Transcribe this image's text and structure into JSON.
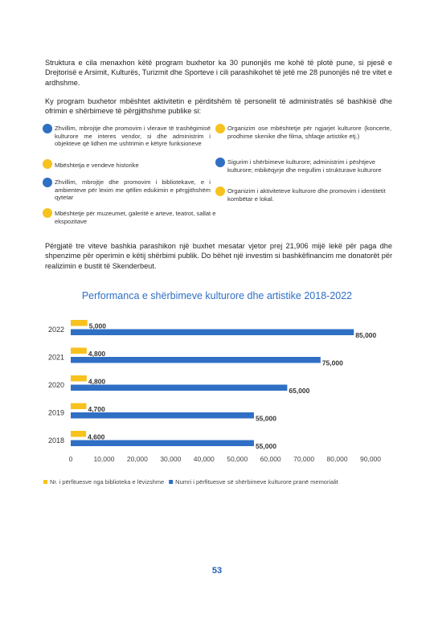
{
  "intro": {
    "paragraph1": "Struktura e cila menaxhon këtë program buxhetor ka 30 punonjës me kohë të plotë pune, si pjesë e Drejtorisë e Arsimit, Kulturës, Turizmit dhe Sporteve i cili parashikohet të jetë me 28 punonjës në tre vitet e ardhshme.",
    "paragraph2": "Ky program buxhetor mbështet aktivitetin e përditshëm të personelit të administratës së bashkisë dhe ofrimin e shërbimeve të përgjithshme publike si:"
  },
  "services": {
    "left": [
      {
        "text": "Zhvillim, mbrojtje dhe promovim i vlerave të trashëgimisë kulturore me interes vendor, si dhe administrim i objekteve që lidhen me ushtrimin e këtyre funksioneve",
        "color": "#2f6fc4"
      },
      {
        "text": "Mbështetja e vendeve historike",
        "color": "#f7c21d"
      },
      {
        "text": "Zhvillim, mbrojtje dhe promovim i bibliotekave, e i ambienteve për lexim me qëllim edukimin e përgjithshëm qytetar",
        "color": "#2f6fc4"
      },
      {
        "text": "Mbështetje për muzeumet, galeritë e arteve, teatrot, sallat e ekspozitave",
        "color": "#f7c21d"
      }
    ],
    "right": [
      {
        "text": "Organizim ose mbështetje për ngjarjet kulturore (koncerte, prodhime skenike dhe filma, shfaqje artistike etj.)",
        "color": "#f7c21d"
      },
      {
        "text": "Sigurim i shërbimeve kulturore; administrim i pështjeve kulturore; mbikëqyrje dhe rregullim i strukturave kulturore",
        "color": "#2f6fc4"
      },
      {
        "text": "Organizim i aktiviteteve kulturore dhe promovim i identitetit kombëtar e lokal.",
        "color": "#f7c21d"
      }
    ]
  },
  "paragraph3": "Përgjatë tre viteve bashkia parashikon një buxhet mesatar vjetor prej 21,906 mijë lekë për paga dhe shpenzime për operimin e këtij shërbimi publik. Do bëhet një investim si bashkëfinancim me donatorët për realizimin e bustit të Skenderbeut.",
  "chart_data": {
    "type": "bar",
    "orientation": "horizontal",
    "title": "Performanca e shërbimeve kulturore dhe artistike 2018-2022",
    "categories": [
      "2022",
      "2021",
      "2020",
      "2019",
      "2018"
    ],
    "series": [
      {
        "name": "Nr. i përfituesve nga biblioteka e lëvizshme",
        "color": "#f7c21d",
        "values": [
          5000,
          4800,
          4800,
          4700,
          4600
        ]
      },
      {
        "name": "Numri i përfituesve së shërbimeve kulturore pranë memorialit",
        "color": "#2f6fc4",
        "values": [
          85000,
          75000,
          65000,
          55000,
          55000
        ]
      }
    ],
    "data_labels": [
      [
        "5,000",
        "4,800",
        "4,800",
        "4,700",
        "4,600"
      ],
      [
        "85,000",
        "75,000",
        "65,000",
        "55,000",
        "55,000"
      ]
    ],
    "xlim": [
      0,
      90000
    ],
    "x_ticks": [
      {
        "value": 0,
        "label": "0"
      },
      {
        "value": 10000,
        "label": "10,000"
      },
      {
        "value": 20000,
        "label": "20,000"
      },
      {
        "value": 30000,
        "label": "30,000"
      },
      {
        "value": 40000,
        "label": "40,000"
      },
      {
        "value": 50000,
        "label": "50,000"
      },
      {
        "value": 60000,
        "label": "60,000"
      },
      {
        "value": 70000,
        "label": "70,000"
      },
      {
        "value": 80000,
        "label": "80,000"
      },
      {
        "value": 90000,
        "label": "90,000"
      }
    ],
    "grid": false,
    "legend": "bottom",
    "title_color": "#2f6fc4"
  },
  "page_number": "53"
}
